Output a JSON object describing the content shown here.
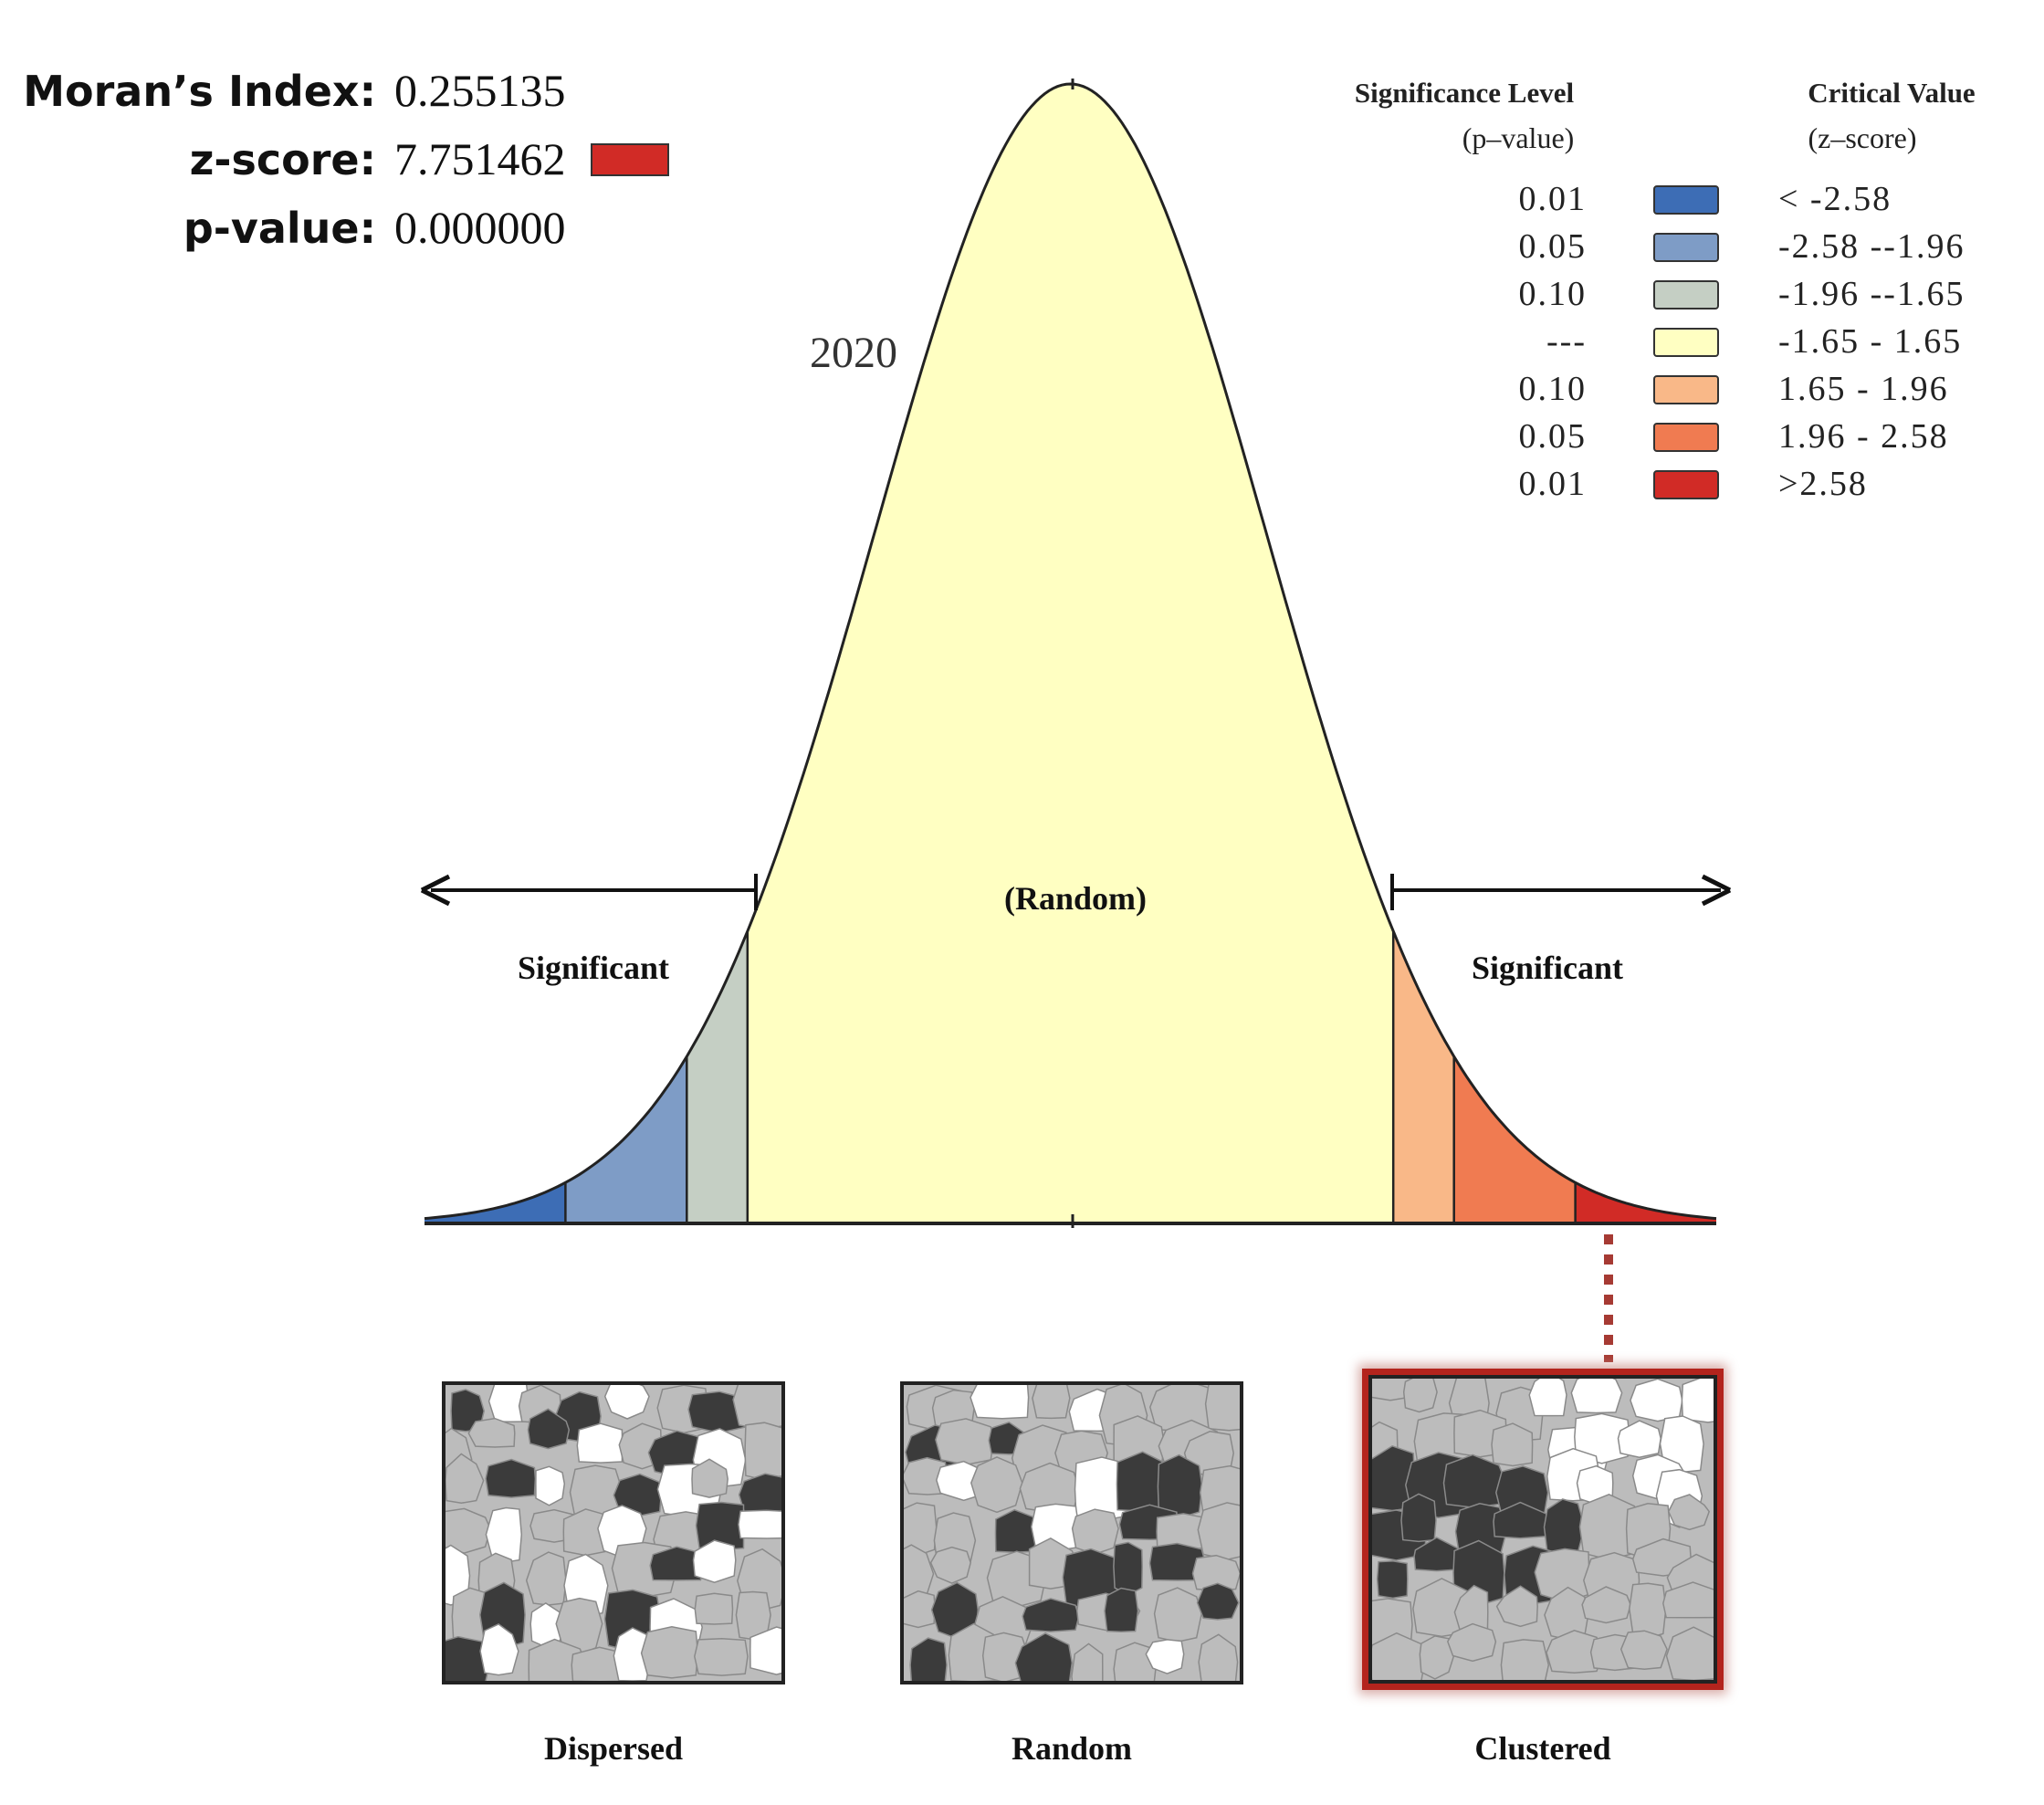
{
  "stats": {
    "moran_label": "Moran’s Index:",
    "moran_value": "0.255135",
    "z_label": "z-score:",
    "z_value": "7.751462",
    "z_swatch_color": "#d12b26",
    "p_label": "p-value:",
    "p_value": "0.000000"
  },
  "chart_data": {
    "type": "area",
    "title": "2020",
    "description_labels": {
      "center": "(Random)",
      "left_tail": "Significant",
      "right_tail": "Significant"
    },
    "x_range": [
      -3.3,
      3.3
    ],
    "curve": "standard normal distribution",
    "bands": [
      {
        "from": -3.3,
        "to": -2.58,
        "color": "#3d6db5"
      },
      {
        "from": -2.58,
        "to": -1.96,
        "color": "#7e9cc6"
      },
      {
        "from": -1.96,
        "to": -1.65,
        "color": "#c5cfc4"
      },
      {
        "from": -1.65,
        "to": 1.65,
        "color": "#ffffc2"
      },
      {
        "from": 1.65,
        "to": 1.96,
        "color": "#f9b888"
      },
      {
        "from": 1.96,
        "to": 2.58,
        "color": "#f07b51"
      },
      {
        "from": 2.58,
        "to": 3.3,
        "color": "#d12b26"
      }
    ],
    "observed_z": 7.751462,
    "legend": {
      "p_header": "Significance Level",
      "p_subheader": "(p–value)",
      "z_header": "Critical Value",
      "z_subheader": "(z–score)",
      "items": [
        {
          "p": "0.01",
          "z": "< -2.58",
          "color": "#3d6db5"
        },
        {
          "p": "0.05",
          "z": "-2.58 --1.96",
          "color": "#7e9cc6"
        },
        {
          "p": "0.10",
          "z": "-1.96 --1.65",
          "color": "#c5cfc4"
        },
        {
          "p": "---",
          "z": "-1.65 - 1.65",
          "color": "#ffffc2"
        },
        {
          "p": "0.10",
          "z": "1.65 - 1.96",
          "color": "#f9b888"
        },
        {
          "p": "0.05",
          "z": "1.96 - 2.58",
          "color": "#f07b51"
        },
        {
          "p": "0.01",
          "z": ">2.58",
          "color": "#d12b26"
        }
      ]
    }
  },
  "maps": [
    {
      "label": "Dispersed",
      "pattern": "dispersed"
    },
    {
      "label": "Random",
      "pattern": "random"
    },
    {
      "label": "Clustered",
      "pattern": "clustered",
      "highlighted": true,
      "highlight_color": "#b3241d"
    }
  ]
}
